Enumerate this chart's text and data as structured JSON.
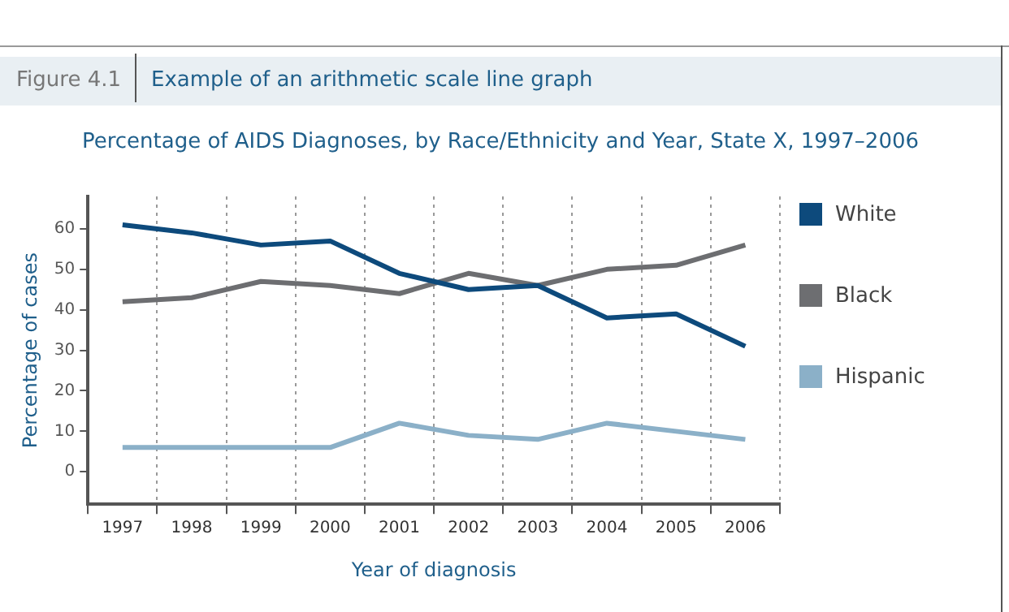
{
  "chart_data": {
    "type": "line",
    "title": "Percentage of AIDS Diagnoses, by Race/Ethnicity and Year, State X, 1997–2006",
    "xlabel": "Year of diagnosis",
    "ylabel": "Percentage of cases",
    "annotations": [
      "Figure 4.1",
      "Example of an arithmetic scale line graph"
    ],
    "categories": [
      "1997",
      "1998",
      "1999",
      "2000",
      "2001",
      "2002",
      "2003",
      "2004",
      "2005",
      "2006"
    ],
    "series": [
      {
        "name": "White",
        "color": "#0d4a7c",
        "values": [
          61,
          59,
          56,
          57,
          49,
          45,
          46,
          38,
          39,
          31
        ]
      },
      {
        "name": "Black",
        "color": "#6d6e71",
        "values": [
          42,
          43,
          47,
          46,
          44,
          49,
          46,
          50,
          51,
          56
        ]
      },
      {
        "name": "Hispanic",
        "color": "#8bb0c8",
        "values": [
          6,
          6,
          6,
          6,
          12,
          9,
          8,
          12,
          10,
          8
        ]
      }
    ],
    "ylim": [
      -8,
      68
    ],
    "yticks": [
      0,
      10,
      20,
      30,
      40,
      50,
      60
    ],
    "grid": "x",
    "legend": "right",
    "marker": "none",
    "line_style": "solid"
  }
}
